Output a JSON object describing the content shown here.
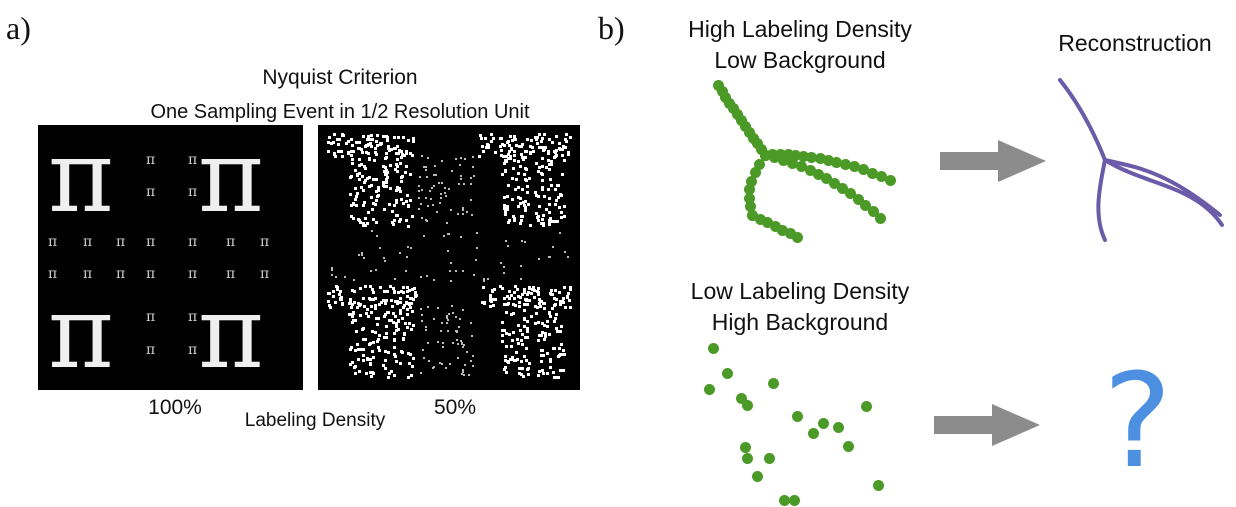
{
  "panel_a": {
    "label": "a)",
    "title": "Nyquist Criterion",
    "subtitle": "One Sampling Event in 1/2 Resolution Unit",
    "symbol": "π",
    "left_caption": "100%",
    "right_caption": "50%",
    "axis_label": "Labeling Density"
  },
  "panel_b": {
    "label": "b)",
    "top_heading": "High Labeling Density\nLow Background",
    "reconstruction": "Reconstruction",
    "bottom_heading": "Low Labeling Density\nHigh Background",
    "question_mark": "?"
  },
  "colors": {
    "dots": "#4b9a27",
    "reconstruction_line": "#6a5ca8",
    "arrow": "#8c8c8c",
    "question": "#4d8fe0"
  },
  "icons": [
    "arrow-right-icon",
    "question-mark-icon"
  ]
}
